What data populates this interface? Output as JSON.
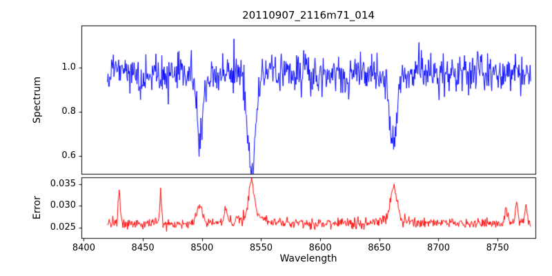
{
  "figure": {
    "title": "20110907_2116m71_014",
    "xlabel": "Wavelength",
    "background": "#ffffff",
    "frame_color": "#000000"
  },
  "chart_data": [
    {
      "type": "line",
      "panel": "spectrum",
      "ylabel": "Spectrum",
      "color": "#0000ff",
      "xlim": [
        8398,
        8782
      ],
      "ylim": [
        0.52,
        1.19
      ],
      "x_data_range": [
        8420,
        8778
      ],
      "x_step": 0.5,
      "xticks": [
        8400,
        8450,
        8500,
        8550,
        8600,
        8650,
        8700,
        8750
      ],
      "xtick_labels": [
        "8400",
        "8450",
        "8500",
        "8550",
        "8600",
        "8650",
        "8700",
        "8750"
      ],
      "yticks": [
        0.6,
        0.8,
        1.0
      ],
      "ytick_labels": [
        "0.6",
        "0.8",
        "1.0"
      ],
      "baseline": 0.972,
      "noise_sigma": 0.042,
      "absorption_lines": [
        {
          "center": 8498,
          "depth": 0.29,
          "width": 2.6
        },
        {
          "center": 8542,
          "depth": 0.43,
          "width": 3.4
        },
        {
          "center": 8662,
          "depth": 0.35,
          "width": 2.9
        }
      ]
    },
    {
      "type": "line",
      "panel": "error",
      "ylabel": "Error",
      "color": "#ff0000",
      "xlim": [
        8398,
        8782
      ],
      "ylim": [
        0.0226,
        0.0366
      ],
      "x_data_range": [
        8420,
        8778
      ],
      "x_step": 0.5,
      "yticks": [
        0.025,
        0.03,
        0.035
      ],
      "ytick_labels": [
        "0.025",
        "0.030",
        "0.035"
      ],
      "baseline": 0.026,
      "noise_sigma": 0.0006,
      "peaks": [
        {
          "center": 8430,
          "height": 0.008,
          "width": 0.8
        },
        {
          "center": 8465,
          "height": 0.0068,
          "width": 0.8
        },
        {
          "center": 8498,
          "height": 0.0042,
          "width": 2.5
        },
        {
          "center": 8520,
          "height": 0.0028,
          "width": 1.4
        },
        {
          "center": 8542,
          "height": 0.0082,
          "width": 2.2
        },
        {
          "center": 8542,
          "height": 0.0018,
          "width": 9.0
        },
        {
          "center": 8662,
          "height": 0.0072,
          "width": 2.4
        },
        {
          "center": 8662,
          "height": 0.0015,
          "width": 8.0
        },
        {
          "center": 8757,
          "height": 0.003,
          "width": 1.0
        },
        {
          "center": 8766,
          "height": 0.0045,
          "width": 1.2
        },
        {
          "center": 8774,
          "height": 0.0035,
          "width": 0.9
        }
      ]
    }
  ]
}
